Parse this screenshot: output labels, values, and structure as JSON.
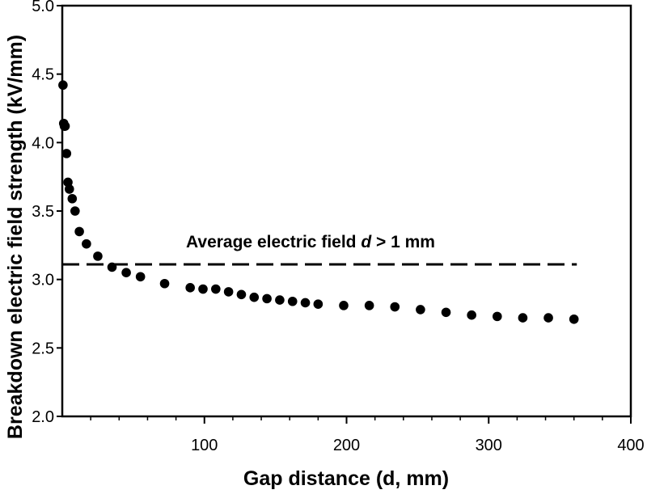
{
  "chart_data": {
    "type": "scatter",
    "xlabel": "Gap distance (d, mm)",
    "ylabel": "Breakdown electric field strength (kV/mm)",
    "xlim": [
      0,
      400
    ],
    "ylim": [
      2.0,
      5.0
    ],
    "x_ticks": [
      "100",
      "200",
      "300",
      "400"
    ],
    "y_ticks": [
      "2.0",
      "2.5",
      "3.0",
      "3.5",
      "4.0",
      "4.5",
      "5.0"
    ],
    "grid": false,
    "legend": "none",
    "series": [
      {
        "marker": "filled-circle",
        "color": "#000000",
        "x": [
          0.5,
          1,
          1.5,
          2,
          3,
          4,
          5,
          7,
          9,
          12,
          17,
          25,
          35,
          45,
          55,
          72,
          90,
          99,
          108,
          117,
          126,
          135,
          144,
          153,
          162,
          171,
          180,
          198,
          216,
          234,
          252,
          270,
          288,
          306,
          324,
          342,
          360
        ],
        "y": [
          4.42,
          4.14,
          4.12,
          4.12,
          3.92,
          3.71,
          3.66,
          3.59,
          3.5,
          3.35,
          3.26,
          3.17,
          3.09,
          3.05,
          3.02,
          2.97,
          2.94,
          2.93,
          2.93,
          2.91,
          2.89,
          2.87,
          2.86,
          2.85,
          2.84,
          2.83,
          2.82,
          2.81,
          2.81,
          2.8,
          2.78,
          2.76,
          2.74,
          2.73,
          2.72,
          2.72,
          2.71
        ]
      }
    ],
    "reference_line": {
      "y": 3.11,
      "x_range": [
        0,
        362
      ],
      "style": "dashed",
      "color": "#000000",
      "label_parts": [
        "Average electric field ",
        "d",
        " > 1 mm"
      ]
    }
  }
}
